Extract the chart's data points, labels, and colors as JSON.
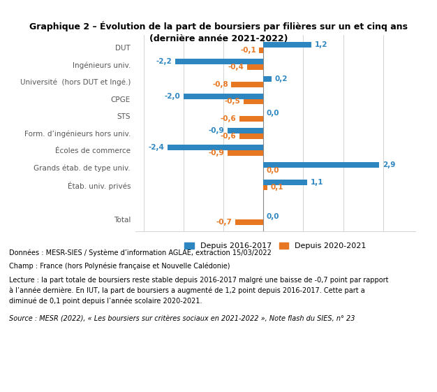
{
  "title": "Graphique 2 – Évolution de la part de boursiers par filières sur un et cinq ans\n(dernière année 2021-2022)",
  "categories": [
    "DUT",
    "Ingénieurs univ.",
    "Université  (hors DUT et Ingé.)",
    "CPGE",
    "STS",
    "Form. d’ingénieurs hors univ.",
    "Écoles de commerce",
    "Grands étab. de type univ.",
    "Étab. univ. privés",
    "",
    "Total"
  ],
  "values_blue": [
    1.2,
    -2.2,
    0.2,
    -2.0,
    0.0,
    -0.9,
    -2.4,
    2.9,
    1.1,
    null,
    0.0
  ],
  "values_orange": [
    -0.1,
    -0.4,
    -0.8,
    -0.5,
    -0.6,
    -0.6,
    -0.9,
    0.0,
    0.1,
    null,
    -0.7
  ],
  "color_blue": "#2E86C1",
  "color_orange": "#E87722",
  "legend_blue": "Depuis 2016-2017",
  "legend_orange": "Depuis 2020-2021",
  "xlim": [
    -3.2,
    3.8
  ],
  "bar_height": 0.32,
  "note1": "Données : MESR-SIES / Système d’information AGLAE, extraction 15/03/2022",
  "note2": "Champ : France (hors Polynésie française et Nouvelle Calédonie)",
  "note3_line1": "Lecture : la part totale de boursiers reste stable depuis 2016-2017 malgré une baisse de -0,7 point par rapport",
  "note3_line2": "à l’année dernière. En IUT, la part de boursiers a augmenté de 1,2 point depuis 2016-2017. Cette part a",
  "note3_line3": "diminué de 0,1 point depuis l’année scolaire 2020-2021.",
  "note4": "Source : MESR (2022), « Les boursiers sur critères sociaux en 2021-2022 », Note flash du SIES, n° 23"
}
